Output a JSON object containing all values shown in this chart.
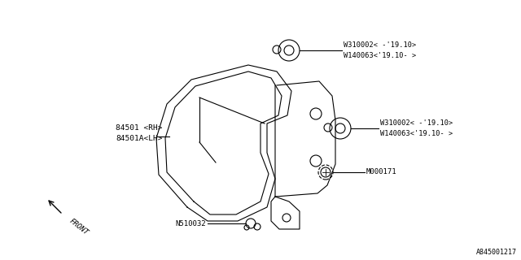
{
  "bg_color": "#ffffff",
  "line_color": "#000000",
  "text_color": "#000000",
  "fig_width": 6.4,
  "fig_height": 3.2,
  "dpi": 100,
  "labels": {
    "top_bolt_line1": "W310002< -'19.10>",
    "top_bolt_line2": "W140063<'19.10- >",
    "right_bolt_line1": "W310002< -'19.10>",
    "right_bolt_line2": "W140063<'19.10- >",
    "main_part_line1": "84501 <RH>",
    "main_part_line2": "84501A<LH>",
    "bottom_bolt": "N510032",
    "screw": "M000171",
    "front": "FRONT",
    "part_number": "A845001217"
  }
}
